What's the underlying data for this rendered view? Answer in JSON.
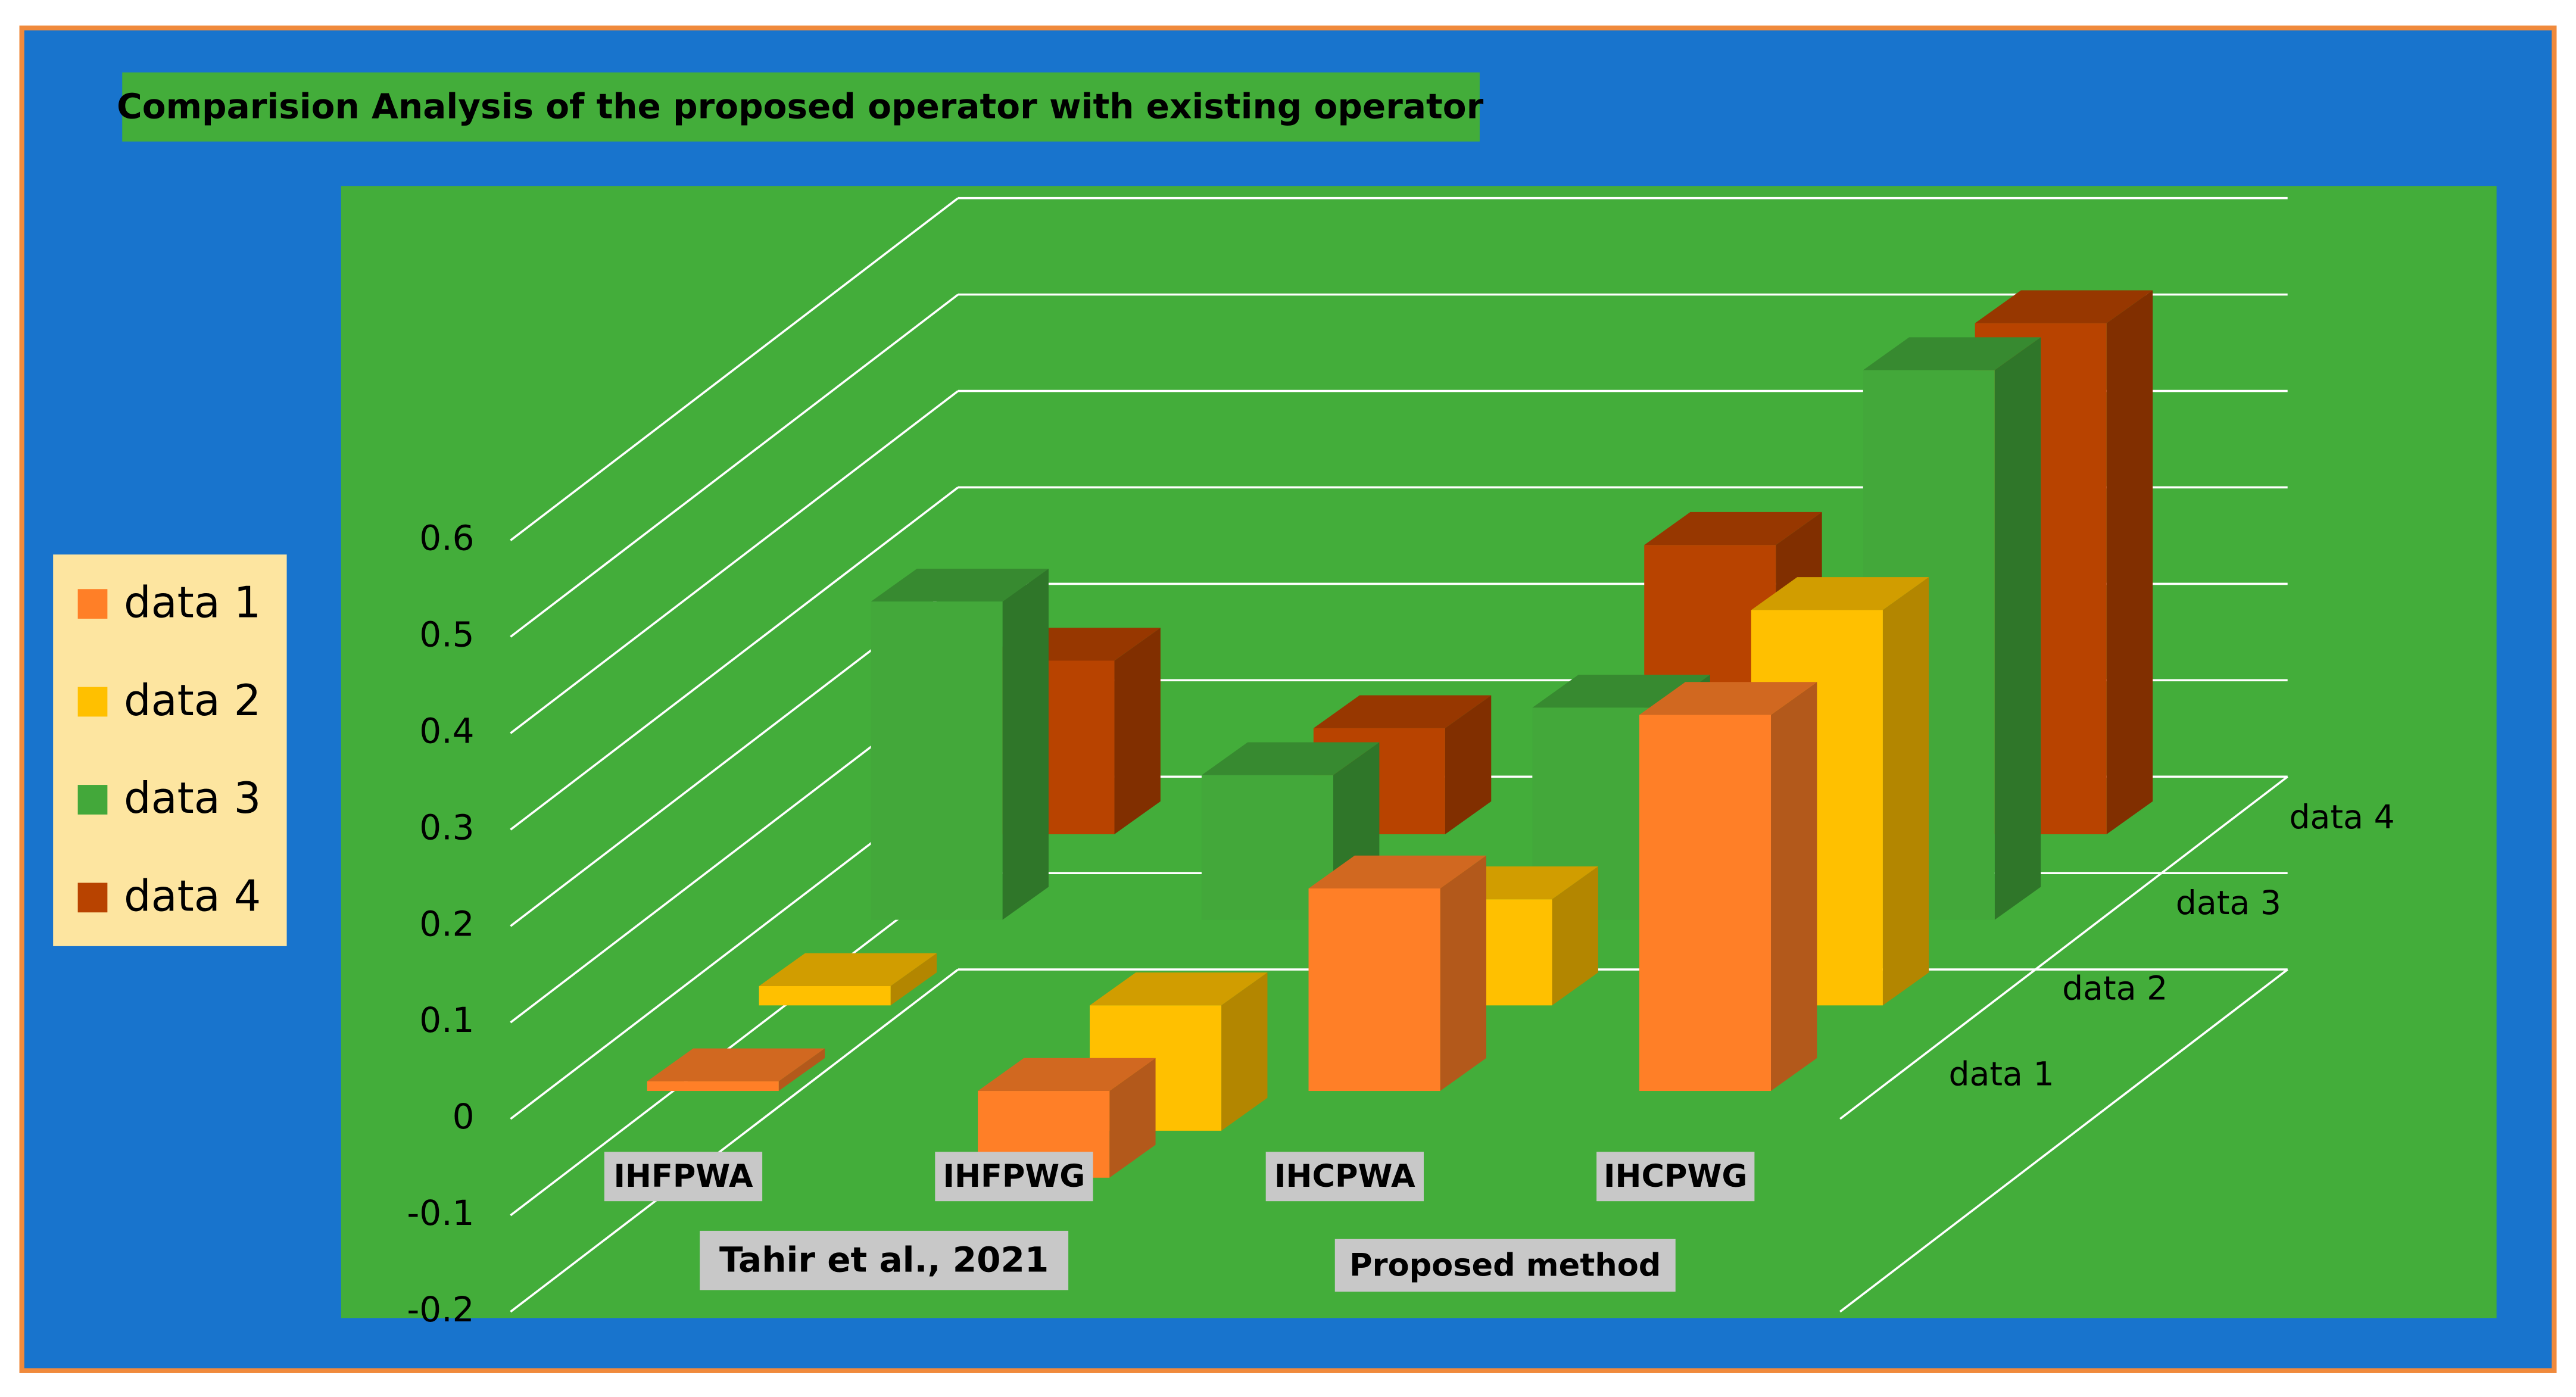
{
  "chart_data": {
    "type": "bar3d",
    "title": "Comparision Analysis of the proposed operator with existing operator",
    "categories": [
      "IHFPWA",
      "IHFPWG",
      "IHCPWA",
      "IHCPWG"
    ],
    "annotations": [
      "Tahir et al., 2021",
      "Proposed method"
    ],
    "series": [
      {
        "name": "data 1",
        "color": "#ff7f27",
        "values": [
          0.01,
          -0.09,
          0.21,
          0.39
        ]
      },
      {
        "name": "data 2",
        "color": "#ffc000",
        "values": [
          0.02,
          -0.13,
          0.11,
          0.41
        ]
      },
      {
        "name": "data 3",
        "color": "#43a83a",
        "values": [
          0.33,
          0.15,
          0.22,
          0.57
        ]
      },
      {
        "name": "data 4",
        "color": "#b84300",
        "values": [
          0.18,
          0.11,
          0.3,
          0.53
        ]
      }
    ],
    "ylim": [
      -0.2,
      0.6
    ],
    "yticks": [
      -0.2,
      -0.1,
      0,
      0.1,
      0.2,
      0.3,
      0.4,
      0.5,
      0.6
    ],
    "grid": true,
    "legend": "left"
  }
}
